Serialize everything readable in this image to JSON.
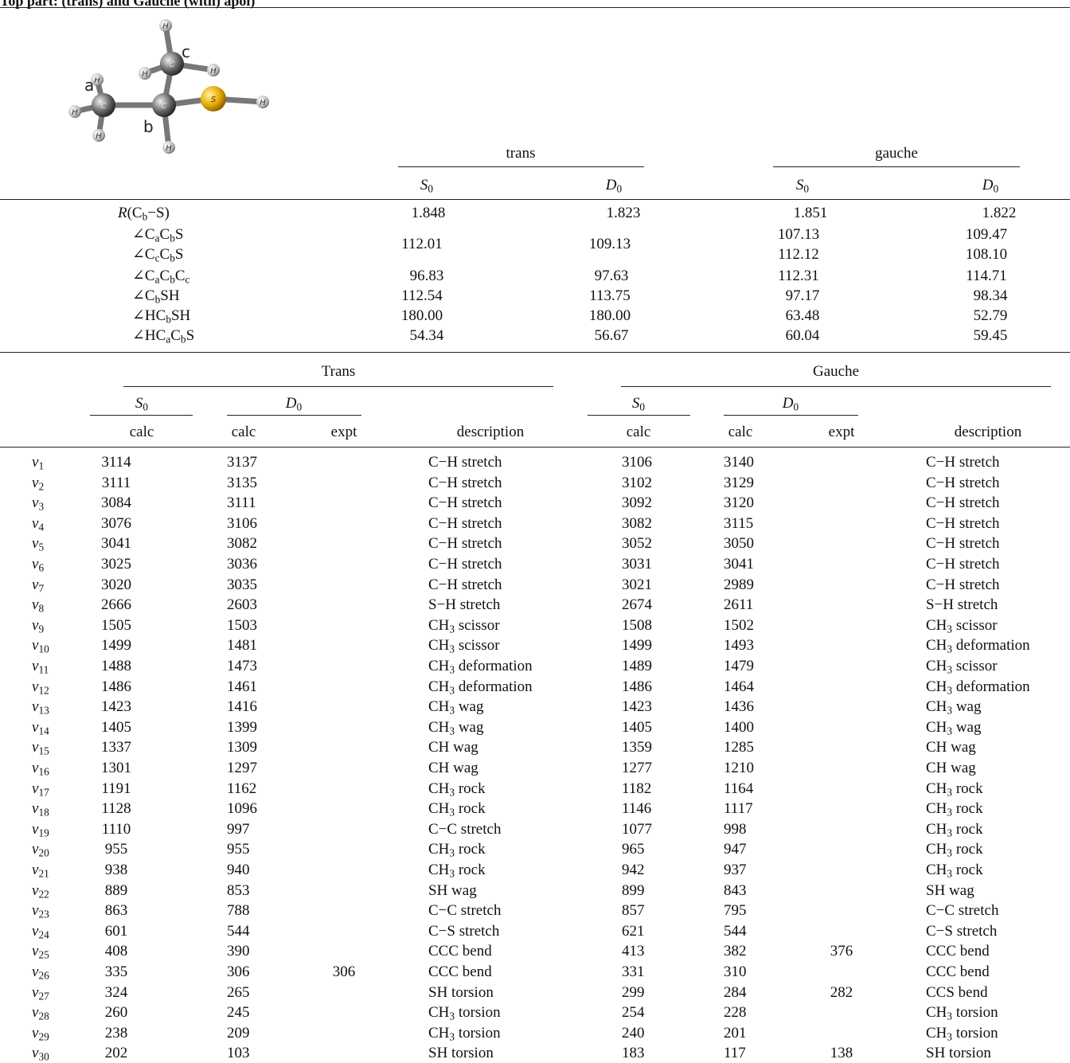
{
  "caption_fragment": "Top part: (trans) and Gauche (with) apol)",
  "molecule_labels": {
    "a": "a",
    "b": "b",
    "c": "c",
    "S": "S",
    "C": "C",
    "H": "H"
  },
  "geometry": {
    "group_trans": "trans",
    "group_gauche": "gauche",
    "S0": "S",
    "D0": "D",
    "zero": "0",
    "rows": [
      {
        "label": "R(Cb−S)",
        "t_s0": "1.848",
        "t_d0": "1.823",
        "g_s0": "1.851",
        "g_d0": "1.822"
      },
      {
        "label": "∠CaCbS",
        "t_s0": "112.01",
        "t_d0": "109.13",
        "g_s0": "107.13",
        "g_d0": "109.47"
      },
      {
        "label": "∠CcCbS",
        "t_s0": "",
        "t_d0": "",
        "g_s0": "112.12",
        "g_d0": "108.10"
      },
      {
        "label": "∠CaCbCc",
        "t_s0": "96.83",
        "t_d0": "97.63",
        "g_s0": "112.31",
        "g_d0": "114.71"
      },
      {
        "label": "∠CbSH",
        "t_s0": "112.54",
        "t_d0": "113.75",
        "g_s0": "97.17",
        "g_d0": "98.34"
      },
      {
        "label": "∠HCbSH",
        "t_s0": "180.00",
        "t_d0": "180.00",
        "g_s0": "63.48",
        "g_d0": "52.79"
      },
      {
        "label": "∠HCaCbS",
        "t_s0": "54.34",
        "t_d0": "56.67",
        "g_s0": "60.04",
        "g_d0": "59.45"
      }
    ]
  },
  "freq": {
    "group_trans": "Trans",
    "group_gauche": "Gauche",
    "sub_calc": "calc",
    "sub_expt": "expt",
    "sub_desc": "description",
    "rows": [
      [
        "1",
        "3114",
        "3137",
        "",
        "C−H stretch",
        "3106",
        "3140",
        "",
        "C−H stretch"
      ],
      [
        "2",
        "3111",
        "3135",
        "",
        "C−H stretch",
        "3102",
        "3129",
        "",
        "C−H stretch"
      ],
      [
        "3",
        "3084",
        "3111",
        "",
        "C−H stretch",
        "3092",
        "3120",
        "",
        "C−H stretch"
      ],
      [
        "4",
        "3076",
        "3106",
        "",
        "C−H stretch",
        "3082",
        "3115",
        "",
        "C−H stretch"
      ],
      [
        "5",
        "3041",
        "3082",
        "",
        "C−H stretch",
        "3052",
        "3050",
        "",
        "C−H stretch"
      ],
      [
        "6",
        "3025",
        "3036",
        "",
        "C−H stretch",
        "3031",
        "3041",
        "",
        "C−H stretch"
      ],
      [
        "7",
        "3020",
        "3035",
        "",
        "C−H stretch",
        "3021",
        "2989",
        "",
        "C−H stretch"
      ],
      [
        "8",
        "2666",
        "2603",
        "",
        "S−H stretch",
        "2674",
        "2611",
        "",
        "S−H stretch"
      ],
      [
        "9",
        "1505",
        "1503",
        "",
        "CH3 scissor",
        "1508",
        "1502",
        "",
        "CH3 scissor"
      ],
      [
        "10",
        "1499",
        "1481",
        "",
        "CH3 scissor",
        "1499",
        "1493",
        "",
        "CH3 deformation"
      ],
      [
        "11",
        "1488",
        "1473",
        "",
        "CH3 deformation",
        "1489",
        "1479",
        "",
        "CH3 scissor"
      ],
      [
        "12",
        "1486",
        "1461",
        "",
        "CH3 deformation",
        "1486",
        "1464",
        "",
        "CH3 deformation"
      ],
      [
        "13",
        "1423",
        "1416",
        "",
        "CH3 wag",
        "1423",
        "1436",
        "",
        "CH3 wag"
      ],
      [
        "14",
        "1405",
        "1399",
        "",
        "CH3 wag",
        "1405",
        "1400",
        "",
        "CH3 wag"
      ],
      [
        "15",
        "1337",
        "1309",
        "",
        "CH wag",
        "1359",
        "1285",
        "",
        "CH wag"
      ],
      [
        "16",
        "1301",
        "1297",
        "",
        "CH wag",
        "1277",
        "1210",
        "",
        "CH wag"
      ],
      [
        "17",
        "1191",
        "1162",
        "",
        "CH3 rock",
        "1182",
        "1164",
        "",
        "CH3 rock"
      ],
      [
        "18",
        "1128",
        "1096",
        "",
        "CH3 rock",
        "1146",
        "1117",
        "",
        "CH3 rock"
      ],
      [
        "19",
        "1110",
        "997",
        "",
        "C−C stretch",
        "1077",
        "998",
        "",
        "CH3 rock"
      ],
      [
        "20",
        "955",
        "955",
        "",
        "CH3 rock",
        "965",
        "947",
        "",
        "CH3 rock"
      ],
      [
        "21",
        "938",
        "940",
        "",
        "CH3 rock",
        "942",
        "937",
        "",
        "CH3 rock"
      ],
      [
        "22",
        "889",
        "853",
        "",
        "SH wag",
        "899",
        "843",
        "",
        "SH wag"
      ],
      [
        "23",
        "863",
        "788",
        "",
        "C−C stretch",
        "857",
        "795",
        "",
        "C−C stretch"
      ],
      [
        "24",
        "601",
        "544",
        "",
        "C−S stretch",
        "621",
        "544",
        "",
        "C−S stretch"
      ],
      [
        "25",
        "408",
        "390",
        "",
        "CCC bend",
        "413",
        "382",
        "376",
        "CCC bend"
      ],
      [
        "26",
        "335",
        "306",
        "306",
        "CCC bend",
        "331",
        "310",
        "",
        "CCC bend"
      ],
      [
        "27",
        "324",
        "265",
        "",
        "SH torsion",
        "299",
        "284",
        "282",
        "CCS bend"
      ],
      [
        "28",
        "260",
        "245",
        "",
        "CH3 torsion",
        "254",
        "228",
        "",
        "CH3 torsion"
      ],
      [
        "29",
        "238",
        "209",
        "",
        "CH3 torsion",
        "240",
        "201",
        "",
        "CH3 torsion"
      ],
      [
        "30",
        "202",
        "103",
        "",
        "SH torsion",
        "183",
        "117",
        "138",
        "SH torsion"
      ]
    ]
  }
}
